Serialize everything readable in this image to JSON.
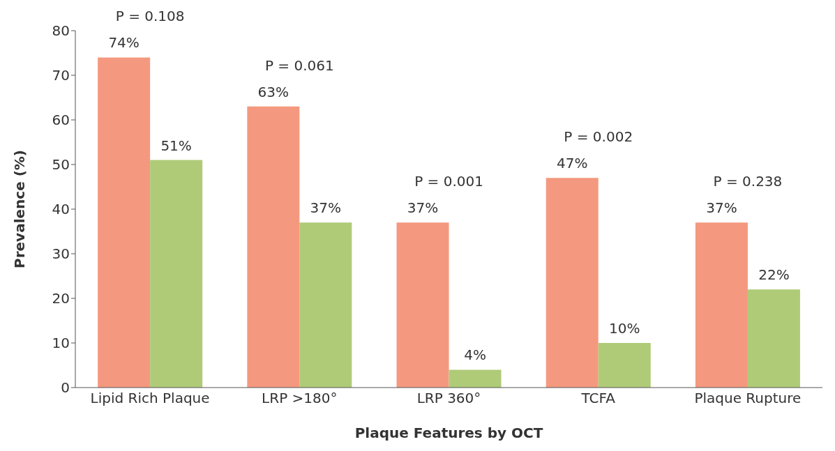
{
  "chart_data": {
    "type": "bar",
    "categories": [
      "Lipid Rich Plaque",
      "LRP >180°",
      "LRP 360°",
      "TCFA",
      "Plaque Rupture"
    ],
    "series": [
      {
        "color": "#f4997f",
        "values": [
          74,
          63,
          37,
          47,
          37
        ],
        "value_labels": [
          "74%",
          "63%",
          "37%",
          "47%",
          "37%"
        ]
      },
      {
        "color": "#afcb78",
        "values": [
          51,
          37,
          4,
          10,
          22
        ],
        "value_labels": [
          "51%",
          "37%",
          "4%",
          "10%",
          "22%"
        ]
      }
    ],
    "xlabel": "Plaque Features by OCT",
    "ylabel": "Prevalence (%)",
    "ylim": [
      0,
      80
    ],
    "yticks": [
      0,
      10,
      20,
      30,
      40,
      50,
      60,
      70,
      80
    ],
    "annotations": [
      "P = 0.108",
      "P = 0.061",
      "P = 0.001",
      "P = 0.002",
      "P = 0.238"
    ],
    "grid": false,
    "legend": false
  }
}
